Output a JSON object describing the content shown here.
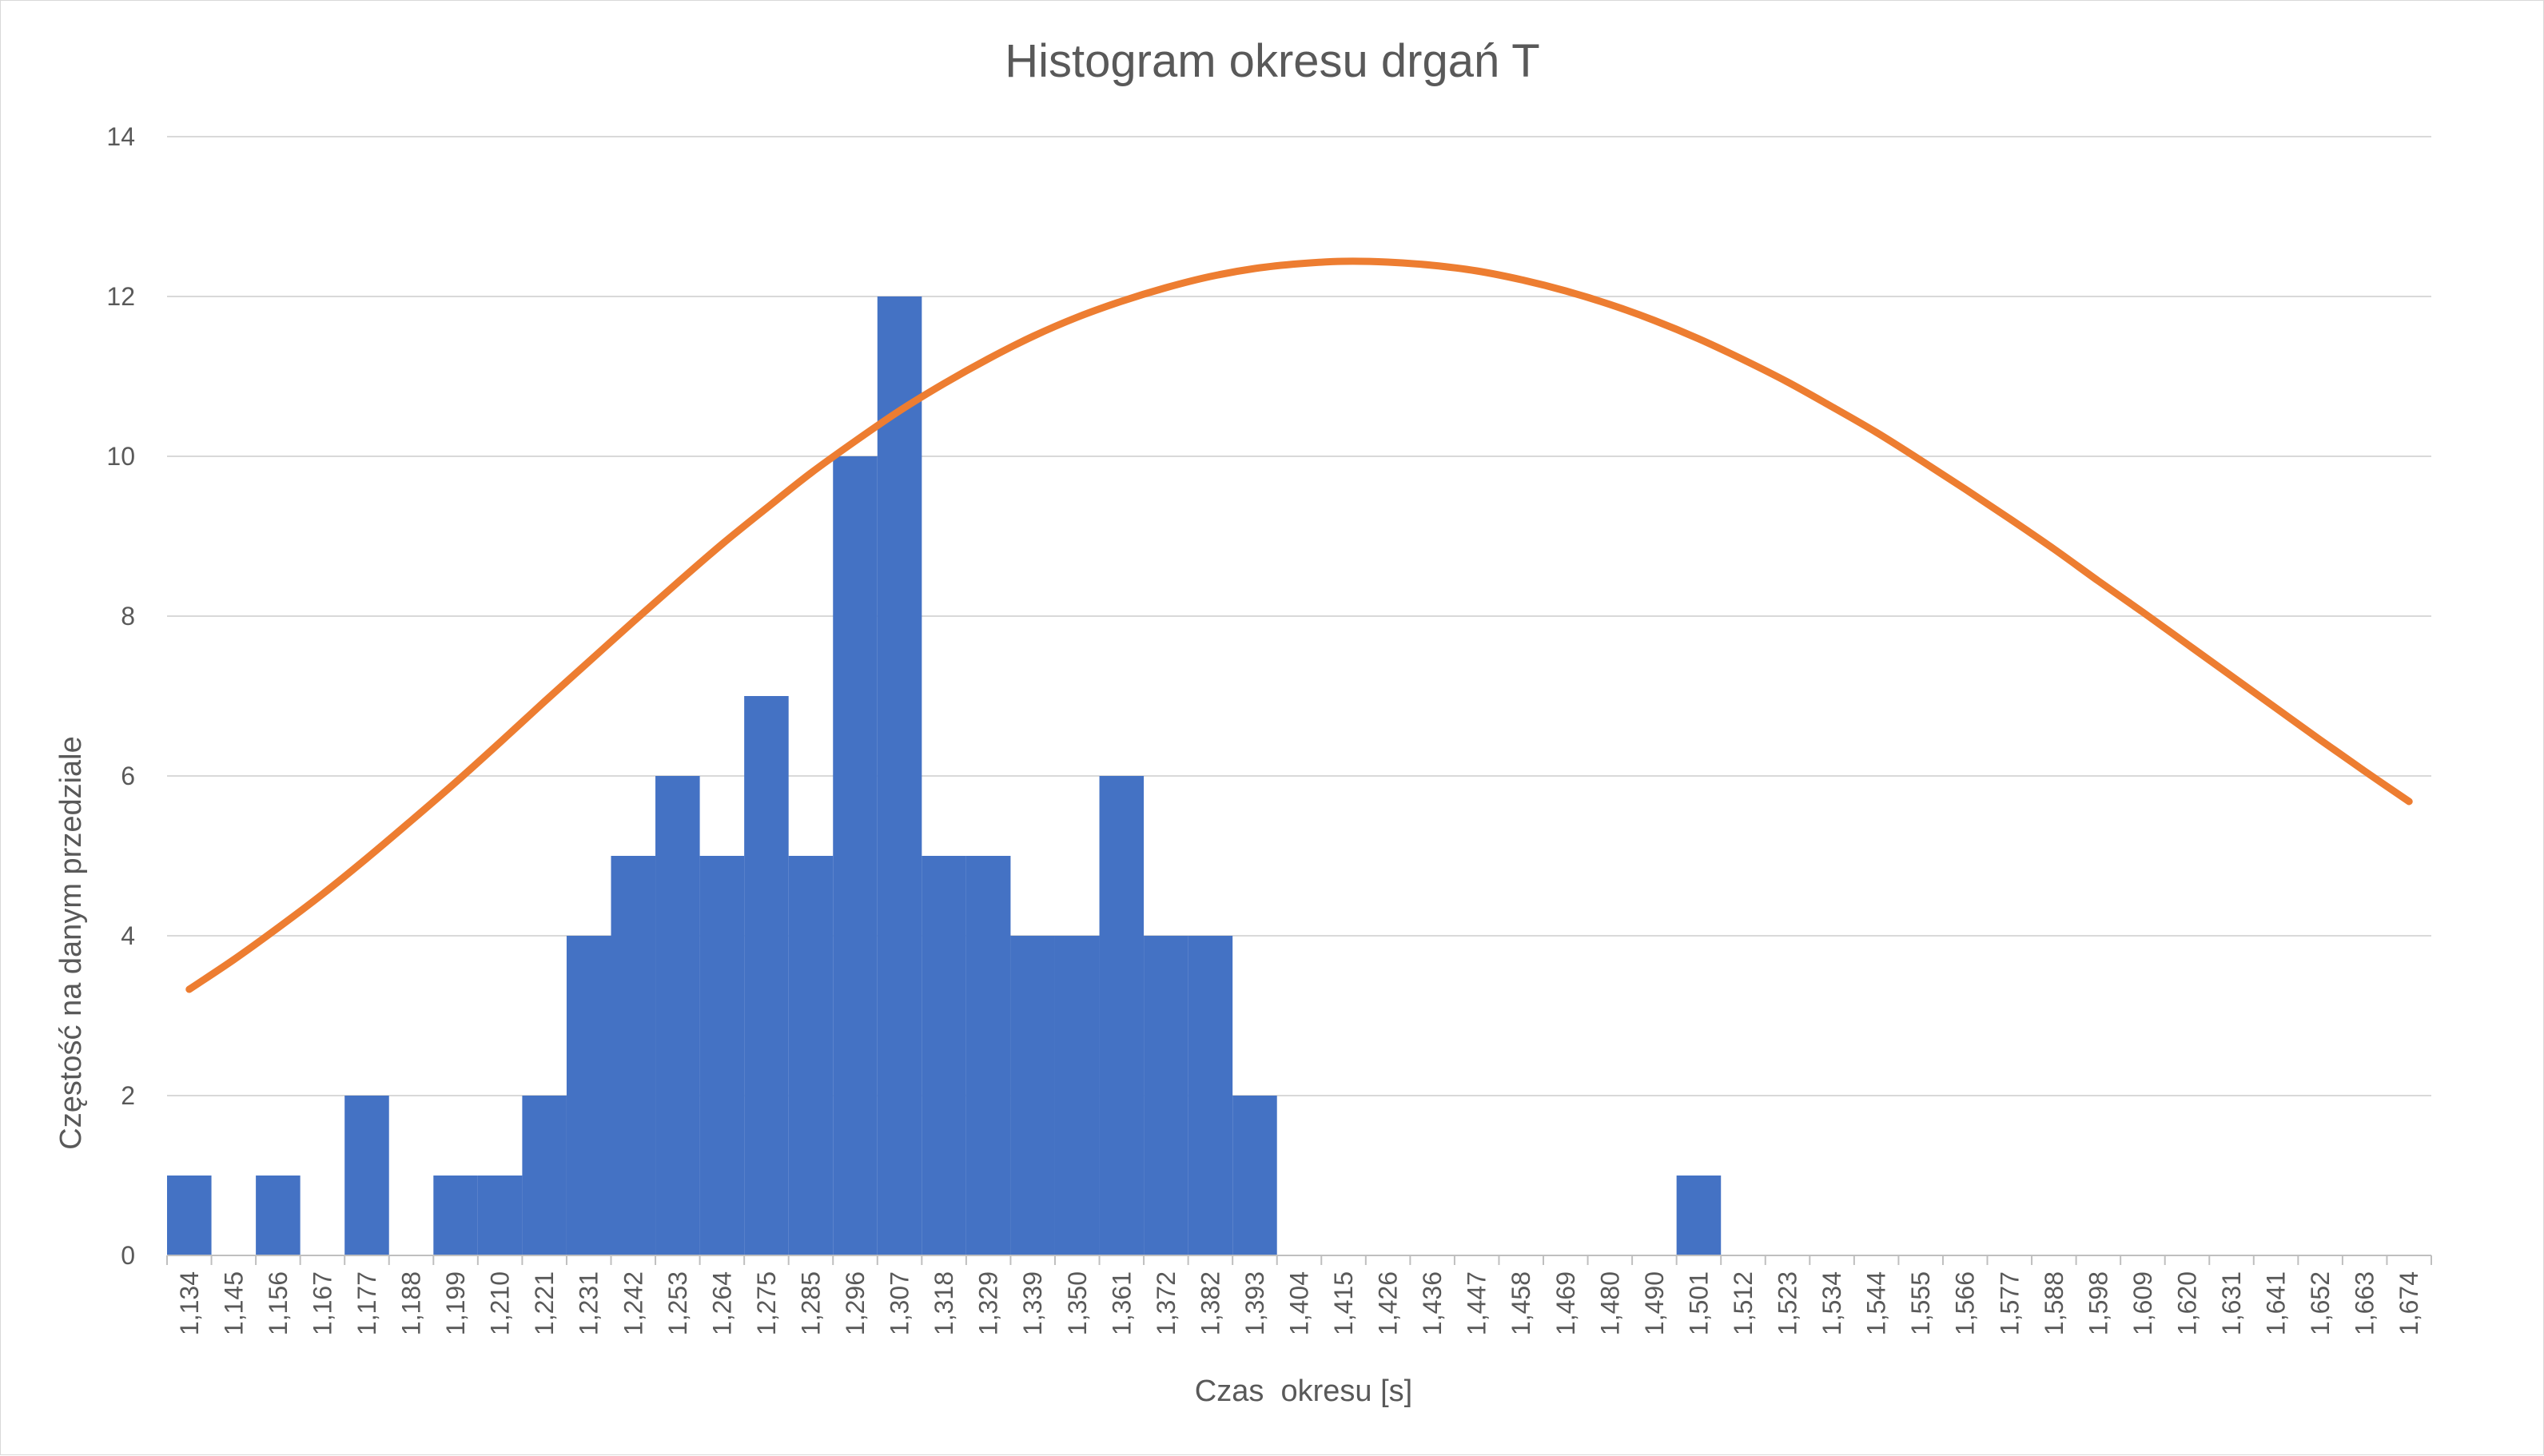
{
  "chart_data": {
    "type": "bar",
    "title": "Histogram okresu drgań T",
    "xlabel": "Czas  okresu [s]",
    "ylabel": "Częstość na danym przedziale",
    "ylim": [
      0,
      14
    ],
    "yticks": [
      "0",
      "2",
      "4",
      "6",
      "8",
      "10",
      "12",
      "14"
    ],
    "grid": true,
    "legend": "none",
    "categories": [
      "1,134",
      "1,145",
      "1,156",
      "1,167",
      "1,177",
      "1,188",
      "1,199",
      "1,210",
      "1,221",
      "1,231",
      "1,242",
      "1,253",
      "1,264",
      "1,275",
      "1,285",
      "1,296",
      "1,307",
      "1,318",
      "1,329",
      "1,339",
      "1,350",
      "1,361",
      "1,372",
      "1,382",
      "1,393",
      "1,404",
      "1,415",
      "1,426",
      "1,436",
      "1,447",
      "1,458",
      "1,469",
      "1,480",
      "1,490",
      "1,501",
      "1,512",
      "1,523",
      "1,534",
      "1,544",
      "1,555",
      "1,566",
      "1,577",
      "1,588",
      "1,598",
      "1,609",
      "1,620",
      "1,631",
      "1,641",
      "1,652",
      "1,663",
      "1,674"
    ],
    "series": [
      {
        "type": "bar",
        "color": "#4472c4",
        "values": [
          1,
          0,
          1,
          0,
          2,
          0,
          1,
          1,
          2,
          4,
          5,
          6,
          5,
          7,
          5,
          10,
          12,
          5,
          5,
          4,
          4,
          6,
          4,
          4,
          2,
          0,
          0,
          0,
          0,
          0,
          0,
          0,
          0,
          0,
          1,
          0,
          0,
          0,
          0,
          0,
          0,
          0,
          0,
          0,
          0,
          0,
          0,
          0,
          0,
          0,
          0
        ]
      },
      {
        "type": "line",
        "color": "#ed7d31",
        "values": [
          3.33,
          3.7,
          4.1,
          4.52,
          4.97,
          5.44,
          5.92,
          6.42,
          6.93,
          7.43,
          7.93,
          8.42,
          8.9,
          9.35,
          9.79,
          10.19,
          10.57,
          10.91,
          11.22,
          11.5,
          11.74,
          11.94,
          12.11,
          12.25,
          12.35,
          12.41,
          12.44,
          12.43,
          12.39,
          12.32,
          12.21,
          12.07,
          11.9,
          11.7,
          11.47,
          11.21,
          10.93,
          10.62,
          10.3,
          9.95,
          9.59,
          9.22,
          8.84,
          8.44,
          8.05,
          7.65,
          7.25,
          6.85,
          6.45,
          6.06,
          5.68
        ]
      }
    ]
  }
}
